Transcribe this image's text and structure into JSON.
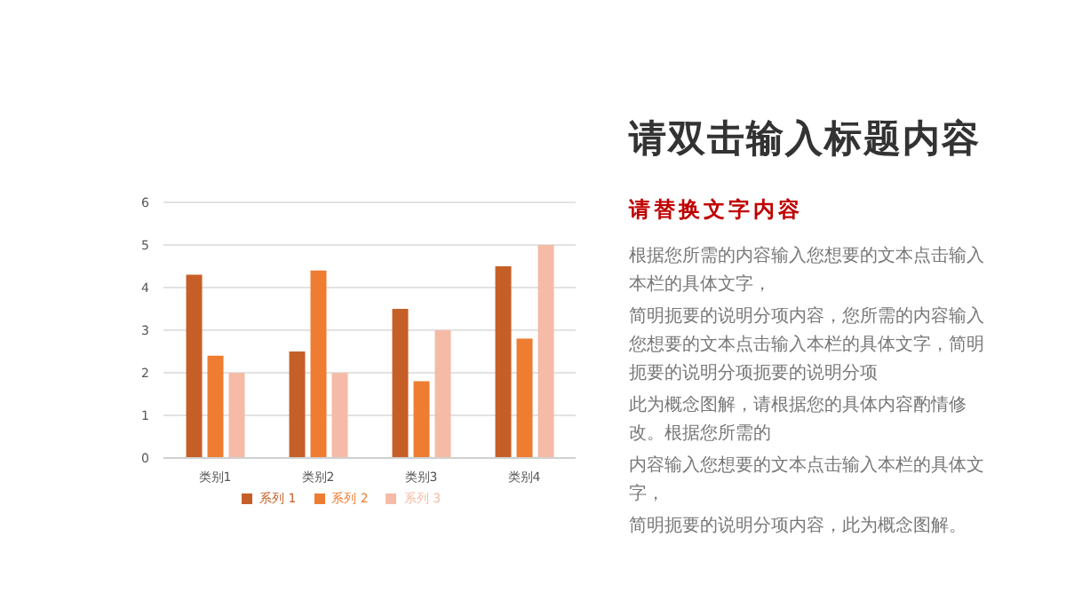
{
  "chart_data": {
    "type": "bar",
    "title": "请双击输入标题内容",
    "subtitle": "请替换文字内容",
    "annotations": [
      "根据您所需的内容输入您想要的文本点击输入本栏的具体文字，",
      "简明扼要的说明分项内容，您所需的内容输入您想要的文本点击输入本栏的具体文字，简明扼要的说明分项扼要的说明分项",
      "此为概念图解，请根据您的具体内容酌情修改。根据您所需的",
      "内容输入您想要的文本点击输入本栏的具体文字，",
      "简明扼要的说明分项内容，此为概念图解。"
    ],
    "categories": [
      "类别1",
      "类别2",
      "类别3",
      "类别4"
    ],
    "series": [
      {
        "name": "系列 1",
        "color": "#c65f27",
        "values": [
          4.3,
          2.5,
          3.5,
          4.5
        ]
      },
      {
        "name": "系列 2",
        "color": "#ee7d31",
        "values": [
          2.4,
          4.4,
          1.8,
          2.8
        ]
      },
      {
        "name": "系列 3",
        "color": "#f5bba6",
        "values": [
          2,
          2,
          3,
          5
        ]
      }
    ],
    "ylim": [
      0,
      6
    ],
    "yticks": [
      0,
      1,
      2,
      3,
      4,
      5,
      6
    ],
    "grid": "y",
    "legend": "bottom"
  }
}
